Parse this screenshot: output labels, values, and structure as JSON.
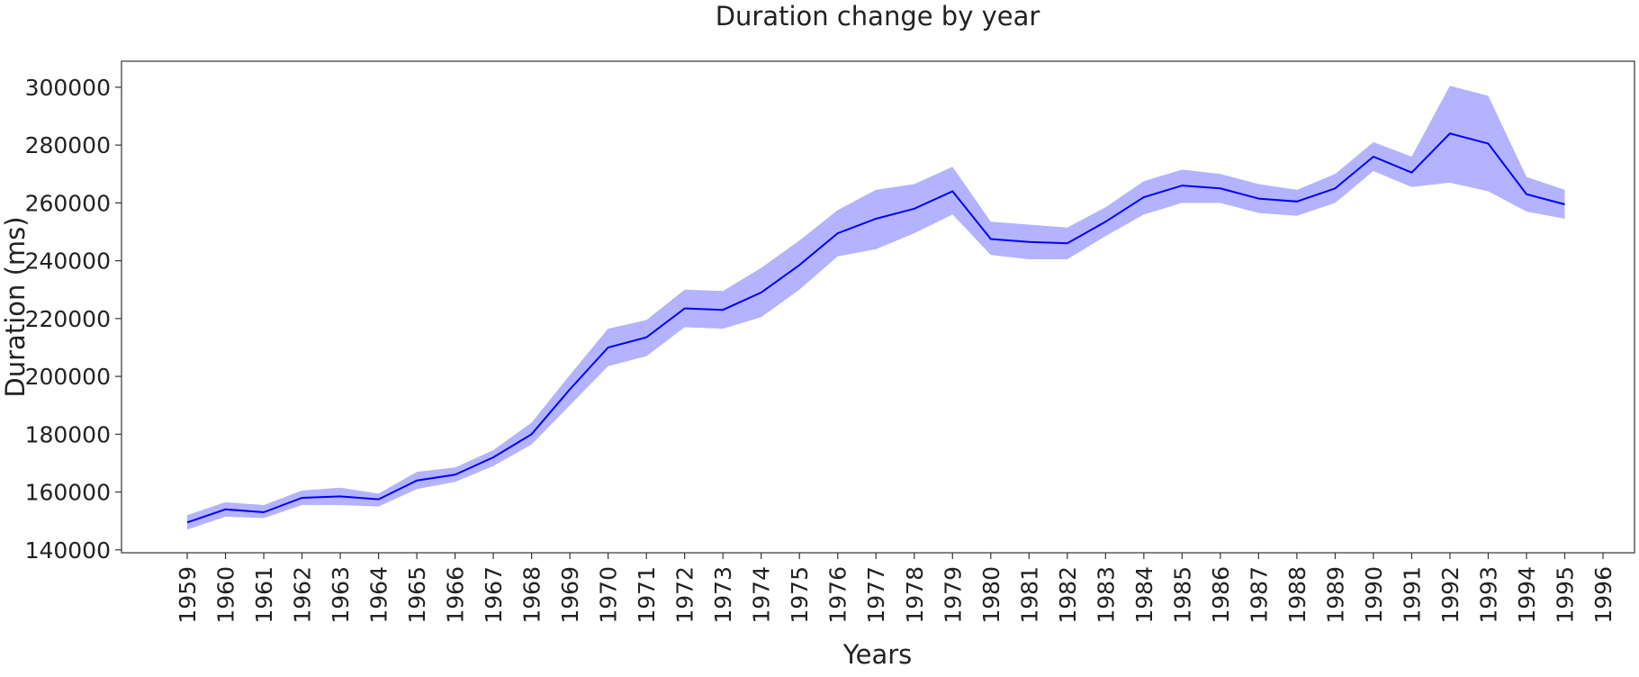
{
  "chart_data": {
    "type": "line",
    "title": "Duration change by year",
    "xlabel": "Years",
    "ylabel": "Duration (ms)",
    "ylim": [
      139000,
      309000
    ],
    "y_ticks": [
      140000,
      160000,
      180000,
      200000,
      220000,
      240000,
      260000,
      280000,
      300000
    ],
    "y_tick_labels": [
      "140000",
      "160000",
      "180000",
      "200000",
      "220000",
      "240000",
      "260000",
      "280000",
      "300000"
    ],
    "x_tick_labels": [
      "1959",
      "1960",
      "1961",
      "1962",
      "1963",
      "1964",
      "1965",
      "1966",
      "1967",
      "1968",
      "1969",
      "1970",
      "1971",
      "1972",
      "1973",
      "1974",
      "1975",
      "1976",
      "1977",
      "1978",
      "1979",
      "1980",
      "1981",
      "1982",
      "1983",
      "1984",
      "1985",
      "1986",
      "1987",
      "1988",
      "1989",
      "1990",
      "1991",
      "1992",
      "1993",
      "1994",
      "1995",
      "1996"
    ],
    "grid": false,
    "line_color": "#0000ff",
    "band_color": "#b3b3ff",
    "series": [
      {
        "x": [
          1959,
          1960,
          1961,
          1962,
          1963,
          1964,
          1965,
          1966,
          1967,
          1968,
          1969,
          1970,
          1971,
          1972,
          1973,
          1974,
          1975,
          1976,
          1977,
          1978,
          1979,
          1980,
          1981,
          1982,
          1983,
          1984,
          1985,
          1986,
          1987,
          1988,
          1989,
          1990,
          1991,
          1992,
          1993,
          1994,
          1995
        ],
        "values": [
          149500,
          154000,
          153000,
          158000,
          158500,
          157500,
          164000,
          166000,
          172000,
          180000,
          195500,
          210000,
          213500,
          223500,
          223000,
          229000,
          238500,
          249500,
          254500,
          258000,
          264000,
          247500,
          246500,
          246000,
          253500,
          262000,
          266000,
          265000,
          261500,
          260500,
          265000,
          276000,
          270500,
          284000,
          280500,
          263000,
          259500
        ],
        "lower": [
          147000,
          151500,
          151000,
          155500,
          155500,
          155000,
          161000,
          163500,
          169000,
          176500,
          190000,
          203500,
          207000,
          217000,
          216500,
          220500,
          230000,
          241500,
          244000,
          249500,
          256000,
          242000,
          240500,
          240500,
          248500,
          256000,
          260000,
          260000,
          256500,
          255500,
          260000,
          271000,
          265500,
          267000,
          264000,
          257000,
          254500
        ],
        "upper": [
          152000,
          156500,
          155500,
          160500,
          161500,
          159500,
          167000,
          168500,
          174500,
          184000,
          200500,
          216500,
          219500,
          230000,
          229500,
          237500,
          247000,
          257500,
          264500,
          266500,
          272500,
          253500,
          252500,
          251500,
          258500,
          267500,
          271500,
          270000,
          266500,
          264500,
          270000,
          281000,
          276000,
          300500,
          297000,
          269000,
          264500
        ]
      }
    ]
  }
}
